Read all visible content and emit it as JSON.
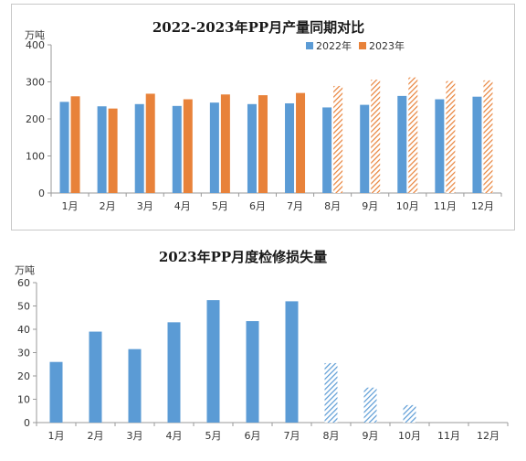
{
  "chart_data": [
    {
      "type": "bar",
      "title": "2022-2023年PP月产量同期对比",
      "ylabel": "万吨",
      "ylim": [
        0,
        400
      ],
      "yticks": [
        0,
        100,
        200,
        300,
        400
      ],
      "grid": false,
      "legend": "top-right",
      "categories": [
        "1月",
        "2月",
        "3月",
        "4月",
        "5月",
        "6月",
        "7月",
        "8月",
        "9月",
        "10月",
        "11月",
        "12月"
      ],
      "series": [
        {
          "name": "2022年",
          "color": "#5b9bd5",
          "values": [
            246,
            234,
            240,
            235,
            244,
            240,
            242,
            231,
            238,
            262,
            253,
            260
          ]
        },
        {
          "name": "2023年",
          "color": "#e8823a",
          "forecast_from_index": 7,
          "values": [
            261,
            228,
            268,
            253,
            266,
            264,
            270,
            289,
            306,
            312,
            302,
            304
          ]
        }
      ]
    },
    {
      "type": "bar",
      "title": "2023年PP月度检修损失量",
      "ylabel": "万吨",
      "ylim": [
        0,
        60
      ],
      "yticks": [
        0,
        10,
        20,
        30,
        40,
        50,
        60
      ],
      "grid": false,
      "categories": [
        "1月",
        "2月",
        "3月",
        "4月",
        "5月",
        "6月",
        "7月",
        "8月",
        "9月",
        "10月",
        "11月",
        "12月"
      ],
      "series": [
        {
          "color": "#5b9bd5",
          "forecast_from_index": 7,
          "values": [
            26,
            39,
            31.5,
            43,
            52.5,
            43.5,
            52,
            25.5,
            15,
            7.5,
            null,
            null
          ]
        }
      ]
    }
  ]
}
